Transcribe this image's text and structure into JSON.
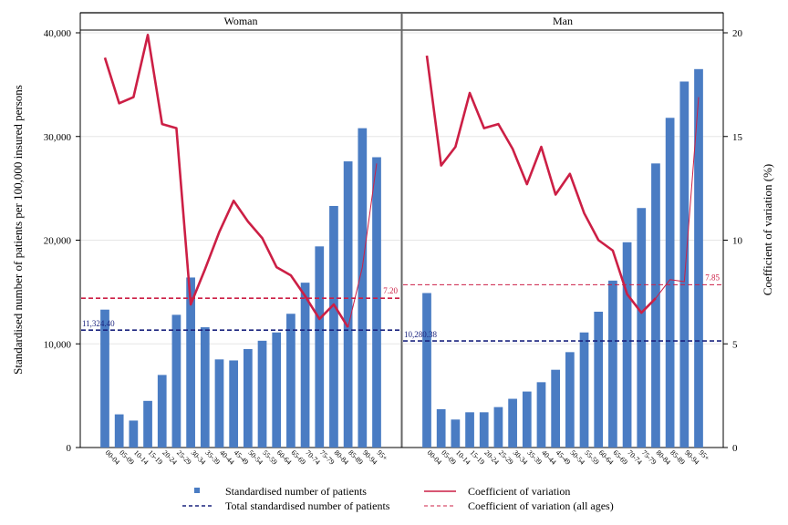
{
  "chart_data": {
    "type": "bar",
    "ylabel_left": "Standardised number of patients per 100,000 insured persons",
    "ylabel_right": "Coefficient of variation (%)",
    "ylim_left": [
      0,
      40000
    ],
    "ylim_right": [
      0,
      20
    ],
    "yticks_left": [
      "0",
      "10,000",
      "20,000",
      "30,000",
      "40,000"
    ],
    "yticks_left_values": [
      0,
      10000,
      20000,
      30000,
      40000
    ],
    "yticks_right": [
      "0",
      "5",
      "10",
      "15",
      "20"
    ],
    "yticks_right_values": [
      0,
      5,
      10,
      15,
      20
    ],
    "categories": [
      "00-04",
      "05-09",
      "10-14",
      "15-19",
      "20-24",
      "25-29",
      "30-34",
      "35-39",
      "40-44",
      "45-49",
      "50-54",
      "55-59",
      "60-64",
      "65-69",
      "70-74",
      "75-79",
      "80-84",
      "85-89",
      "90-94",
      "95+"
    ],
    "grid": true,
    "panels": [
      {
        "title": "Woman",
        "bars": [
          13300,
          3200,
          2600,
          4500,
          7000,
          12800,
          16400,
          11600,
          8500,
          8400,
          9500,
          10300,
          11100,
          12900,
          15900,
          19400,
          23300,
          27600,
          30800,
          28000
        ],
        "cv": [
          18.8,
          16.6,
          16.9,
          19.9,
          15.6,
          15.4,
          6.9,
          8.6,
          10.4,
          11.9,
          10.9,
          10.1,
          8.7,
          8.3,
          7.3,
          6.2,
          6.9,
          5.8,
          8.7,
          13.7
        ],
        "cv_thick_until_index": 17,
        "total": 11324.4,
        "total_label": "11,324.40",
        "cv_all": 7.2,
        "cv_all_label": "7.20"
      },
      {
        "title": "Man",
        "bars": [
          14900,
          3700,
          2700,
          3400,
          3400,
          3900,
          4700,
          5400,
          6300,
          7500,
          9200,
          11100,
          13100,
          16100,
          19800,
          23100,
          27400,
          31800,
          35300,
          36500
        ],
        "cv": [
          18.9,
          13.6,
          14.5,
          17.1,
          15.4,
          15.6,
          14.4,
          12.7,
          14.5,
          12.2,
          13.2,
          11.3,
          10.0,
          9.5,
          7.4,
          6.5,
          7.2,
          8.1,
          8.0,
          16.9
        ],
        "cv_thick_until_index": 16,
        "total": 10280.38,
        "total_label": "10,280.38",
        "cv_all": 7.85,
        "cv_all_label": "7.85"
      }
    ],
    "legend": {
      "position": "bottom",
      "items": [
        {
          "key": "bar",
          "label": "Standardised number of patients"
        },
        {
          "key": "cv",
          "label": "Coefficient of variation"
        },
        {
          "key": "total",
          "label": "Total standardised number of patients"
        },
        {
          "key": "cv_all",
          "label": "Coefficient of variation (all ages)"
        }
      ]
    },
    "colors": {
      "bar": "#4a7cc3",
      "cv": "#cc1f45",
      "total": "#1a237e",
      "grid": "#e6e6e6"
    }
  }
}
